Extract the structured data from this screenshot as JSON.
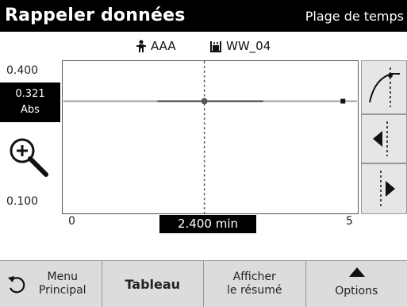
{
  "header": {
    "title": "Rappeler données",
    "mode": "Plage de temps"
  },
  "info": {
    "sample_id": "AAA",
    "vial_id": "WW_04",
    "sample_icon": "person-icon",
    "vial_icon": "vial-icon"
  },
  "axis": {
    "y_max": "0.400",
    "y_min": "0.100",
    "x_min": "0",
    "x_max": "5"
  },
  "readout": {
    "value": "0.321",
    "unit": "Abs"
  },
  "cursor": {
    "label": "2.400 min"
  },
  "side_buttons": [
    "curve-fit-icon",
    "cursor-left-icon",
    "cursor-right-icon"
  ],
  "bottom": {
    "menu_line1": "Menu",
    "menu_line2": "Principal",
    "table": "Tableau",
    "summary_line1": "Afficher",
    "summary_line2": "le résumé",
    "options": "Options"
  },
  "chart_data": {
    "type": "line",
    "xlim": [
      0,
      5
    ],
    "ylim": [
      0.1,
      0.4
    ],
    "x": [
      1.6,
      2.4,
      3.4,
      5
    ],
    "y": [
      0.321,
      0.321,
      0.321,
      0.321
    ],
    "cursor_x": 2.4,
    "cursor_y": 0.321
  }
}
